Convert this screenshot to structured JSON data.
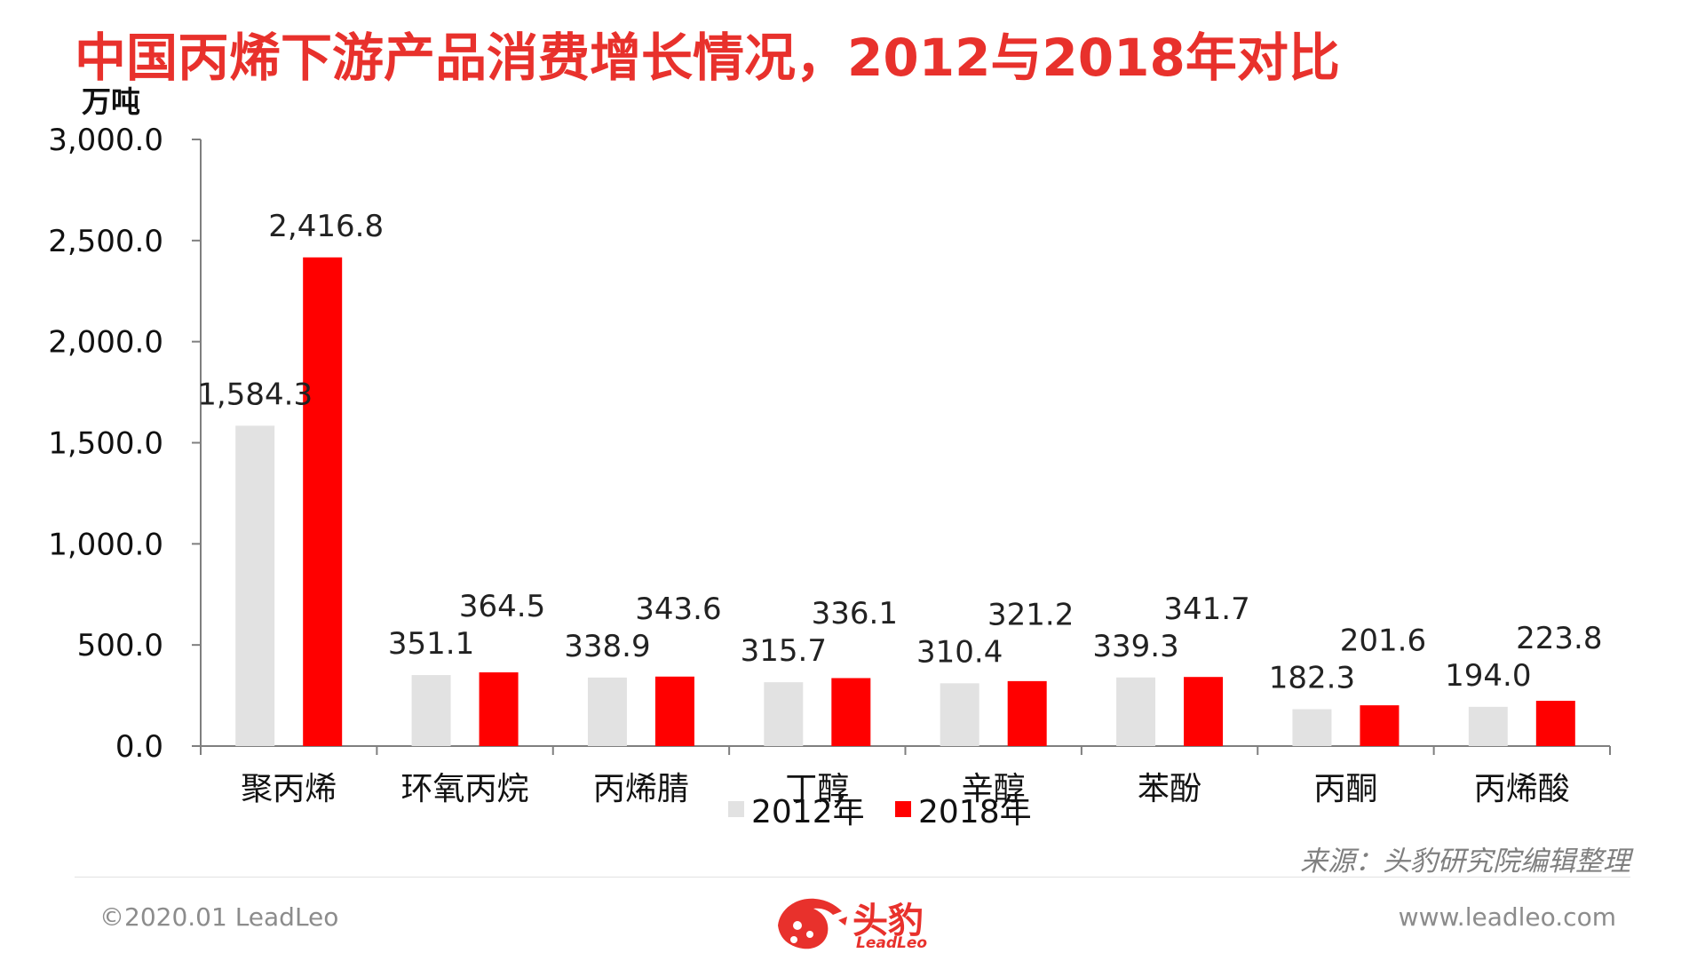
{
  "title": "中国丙烯下游产品消费增长情况，2012与2018年对比",
  "unit_label": "万吨",
  "source": "来源：头豹研究院编辑整理",
  "footer": {
    "copyright": "©2020.01 LeadLeo",
    "website": "www.leadleo.com",
    "logo_text": "头豹",
    "logo_sub": "LeadLeo"
  },
  "colors": {
    "title": "#e8312c",
    "series_2012": "#e2e2e2",
    "series_2018": "#ff0000",
    "axis": "#7f7f7f"
  },
  "chart_data": {
    "type": "bar",
    "title": "中国丙烯下游产品消费增长情况，2012与2018年对比",
    "ylabel": "万吨",
    "ylim": [
      0,
      3000
    ],
    "yticks": [
      "0.0",
      "500.0",
      "1,000.0",
      "1,500.0",
      "2,000.0",
      "2,500.0",
      "3,000.0"
    ],
    "categories": [
      "聚丙烯",
      "环氧丙烷",
      "丙烯腈",
      "丁醇",
      "辛醇",
      "苯酚",
      "丙酮",
      "丙烯酸"
    ],
    "series": [
      {
        "name": "2012年",
        "values": [
          1584.3,
          351.1,
          338.9,
          315.7,
          310.4,
          339.3,
          182.3,
          194.0
        ],
        "labels": [
          "1,584.3",
          "351.1",
          "338.9",
          "315.7",
          "310.4",
          "339.3",
          "182.3",
          "194.0"
        ]
      },
      {
        "name": "2018年",
        "values": [
          2416.8,
          364.5,
          343.6,
          336.1,
          321.2,
          341.7,
          201.6,
          223.8
        ],
        "labels": [
          "2,416.8",
          "364.5",
          "343.6",
          "336.1",
          "321.2",
          "341.7",
          "201.6",
          "223.8"
        ]
      }
    ],
    "legend": "bottom",
    "grid": false
  }
}
